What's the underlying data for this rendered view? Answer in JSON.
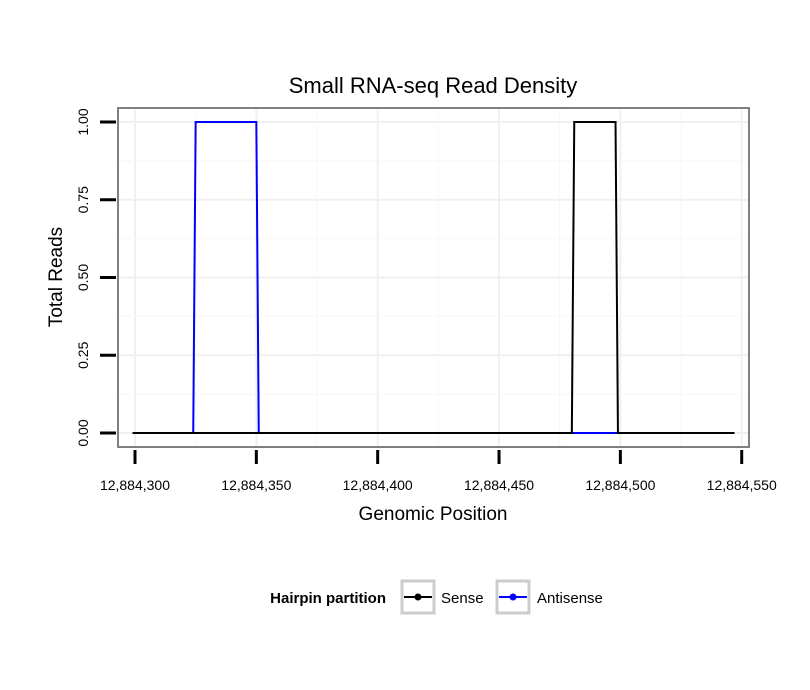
{
  "chart_data": {
    "type": "line",
    "title": "Small RNA-seq Read Density",
    "xlabel": "Genomic Position",
    "ylabel": "Total Reads",
    "xlim": [
      12884293,
      12884553
    ],
    "ylim": [
      -0.045,
      1.045
    ],
    "x_ticks": [
      12884300,
      12884350,
      12884400,
      12884450,
      12884500,
      12884550
    ],
    "x_tick_labels": [
      "12,884,300",
      "12,884,350",
      "12,884,400",
      "12,884,450",
      "12,884,500",
      "12,884,550"
    ],
    "y_ticks": [
      0,
      0.25,
      0.5,
      0.75,
      1
    ],
    "y_tick_labels": [
      "0.00",
      "0.25",
      "0.50",
      "0.75",
      "1.00"
    ],
    "grid": true,
    "legend": {
      "title": "Hairpin partition",
      "position": "bottom",
      "entries": [
        "Sense",
        "Antisense"
      ]
    },
    "series": [
      {
        "name": "Sense",
        "color": "#000000",
        "x": [
          12884299,
          12884325,
          12884351,
          12884480,
          12884481,
          12884498,
          12884499,
          12884547
        ],
        "y": [
          0,
          0,
          0,
          0,
          1,
          1,
          0,
          0
        ]
      },
      {
        "name": "Antisense",
        "color": "#0000ff",
        "x": [
          12884299,
          12884324,
          12884325,
          12884350,
          12884351,
          12884480,
          12884499,
          12884547
        ],
        "y": [
          0,
          0,
          1,
          1,
          0,
          0,
          0,
          0
        ]
      }
    ]
  }
}
